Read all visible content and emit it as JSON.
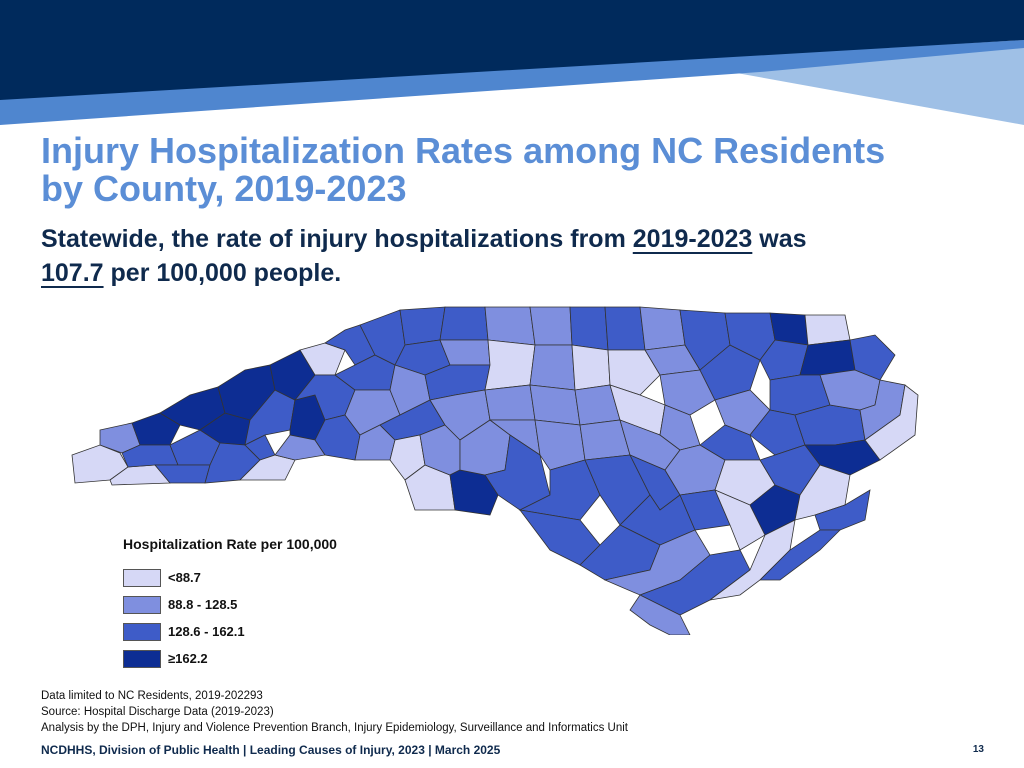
{
  "colors": {
    "header_dark": "#002a5c",
    "header_mid": "#4f86cf",
    "header_light": "#9fc0e6",
    "title": "#5b8ed6",
    "subtitle": "#0f2a4d",
    "class1": "#d6d8f6",
    "class2": "#7f8fdf",
    "class3": "#3e5cc8",
    "class4": "#0d2d93"
  },
  "title": {
    "line1": "Injury Hospitalization Rates among NC Residents",
    "line2": "by County, 2019-2023"
  },
  "subtitle": {
    "part1": "Statewide, the rate of injury hospitalizations from",
    "years": "2019-2023",
    "part2": "was",
    "rate": "107.7",
    "part3": "per 100,000 people."
  },
  "map": {
    "name": "North Carolina counties",
    "legend": {
      "title": "Hospitalization Rate per 100,000",
      "items": [
        {
          "label": "<88.7",
          "color": "#d6d8f6"
        },
        {
          "label": "88.8 - 128.5",
          "color": "#7f8fdf"
        },
        {
          "label": "128.6 - 162.1",
          "color": "#3e5cc8"
        },
        {
          "label": "≥162.2",
          "color": "#0d2d93"
        }
      ]
    }
  },
  "notes": {
    "line1": "Data limited to NC Residents, 2019-202293",
    "line2": "Source: Hospital Discharge Data (2019-2023)",
    "line3": "Analysis by the DPH, Injury and Violence Prevention Branch, Injury Epidemiology, Surveillance and Informatics Unit"
  },
  "footer": {
    "text": "NCDHHS, Division of Public Health | Leading Causes of Injury, 2023 | March 2025",
    "page": "13"
  }
}
